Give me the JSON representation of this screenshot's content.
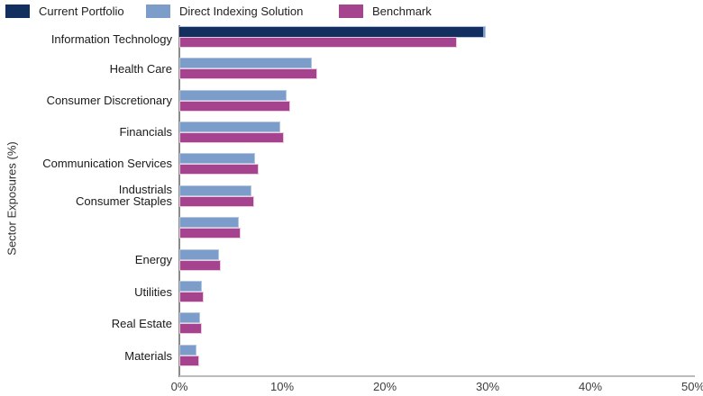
{
  "legend": [
    {
      "label": "Current Portfolio",
      "color": "#132f5f",
      "border": "#132f5f"
    },
    {
      "label": "Direct Indexing Solution",
      "color": "#7c9dc9",
      "border": "#b3c7e0"
    },
    {
      "label": "Benchmark",
      "color": "#a6438f",
      "border": "#eccade"
    }
  ],
  "y_axis_title": "Sector Exposures (%)",
  "chart_data": {
    "type": "bar",
    "orientation": "horizontal",
    "title": "",
    "xlabel": "",
    "ylabel": "Sector Exposures (%)",
    "xlim": [
      0,
      50
    ],
    "x_tick_labels": [
      "0%",
      "10%",
      "20%",
      "30%",
      "40%",
      "50%"
    ],
    "grid": false,
    "legend_position": "top-left",
    "categories": [
      "Information Technology",
      "Health Care",
      "Consumer Discretionary",
      "Financials",
      "Communication Services",
      "Industrials",
      "Consumer Staples",
      "Energy",
      "Utilities",
      "Real Estate",
      "Materials"
    ],
    "series": [
      {
        "name": "Current Portfolio",
        "color": "#132f5f",
        "border": "#132f5f",
        "values": [
          29.6,
          0,
          0,
          0,
          0,
          0,
          0,
          0,
          0,
          0,
          0
        ]
      },
      {
        "name": "Direct Indexing Solution",
        "color": "#7c9dc9",
        "border": "#b3c7e0",
        "values": [
          29.8,
          12.9,
          10.4,
          9.8,
          7.4,
          7.0,
          5.8,
          3.9,
          2.2,
          2.0,
          1.7
        ]
      },
      {
        "name": "Benchmark",
        "color": "#a6438f",
        "border": "#eccade",
        "values": [
          27.0,
          13.4,
          10.8,
          10.2,
          7.7,
          7.3,
          6.0,
          4.0,
          2.4,
          2.2,
          1.9
        ]
      }
    ]
  }
}
